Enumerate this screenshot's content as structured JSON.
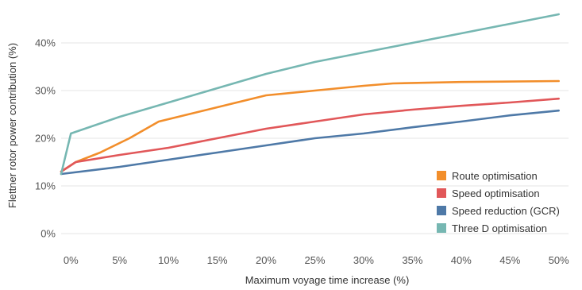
{
  "chart_data": {
    "type": "line",
    "xlabel": "Maximum voyage time increase (%)",
    "ylabel": "Flettner rotor power contribution (%)",
    "x_ticks": [
      "0%",
      "5%",
      "10%",
      "15%",
      "20%",
      "25%",
      "30%",
      "35%",
      "40%",
      "45%",
      "50%"
    ],
    "y_ticks": [
      "0%",
      "10%",
      "20%",
      "30%",
      "40%"
    ],
    "xlim": [
      -1,
      51
    ],
    "ylim": [
      -3,
      49
    ],
    "grid": true,
    "legend_position": "bottom-right",
    "series": [
      {
        "name": "Route optimisation",
        "color": "#f28e2b",
        "x": [
          -1,
          0.5,
          3,
          6,
          9,
          12,
          16,
          20,
          25,
          30,
          33,
          40,
          50
        ],
        "y": [
          13,
          15,
          17,
          20,
          23.5,
          25,
          27,
          29,
          30,
          31,
          31.5,
          31.8,
          32
        ]
      },
      {
        "name": "Speed optimisation",
        "color": "#e15759",
        "x": [
          -1,
          0.5,
          5,
          10,
          15,
          20,
          25,
          30,
          35,
          40,
          45,
          50
        ],
        "y": [
          13,
          15,
          16.5,
          18,
          20,
          22,
          23.5,
          25,
          26,
          26.8,
          27.5,
          28.3
        ]
      },
      {
        "name": "Speed reduction (GCR)",
        "color": "#4e79a7",
        "x": [
          -1,
          5,
          10,
          15,
          20,
          25,
          30,
          35,
          40,
          45,
          50
        ],
        "y": [
          12.5,
          14,
          15.5,
          17,
          18.5,
          20,
          21,
          22.3,
          23.5,
          24.8,
          25.8
        ]
      },
      {
        "name": "Three D optimisation",
        "color": "#76b7b2",
        "x": [
          -1,
          0,
          5,
          10,
          15,
          20,
          25,
          30,
          35,
          40,
          45,
          50
        ],
        "y": [
          12.5,
          21,
          24.5,
          27.5,
          30.5,
          33.5,
          36,
          38,
          40,
          42,
          44,
          46
        ]
      }
    ]
  }
}
